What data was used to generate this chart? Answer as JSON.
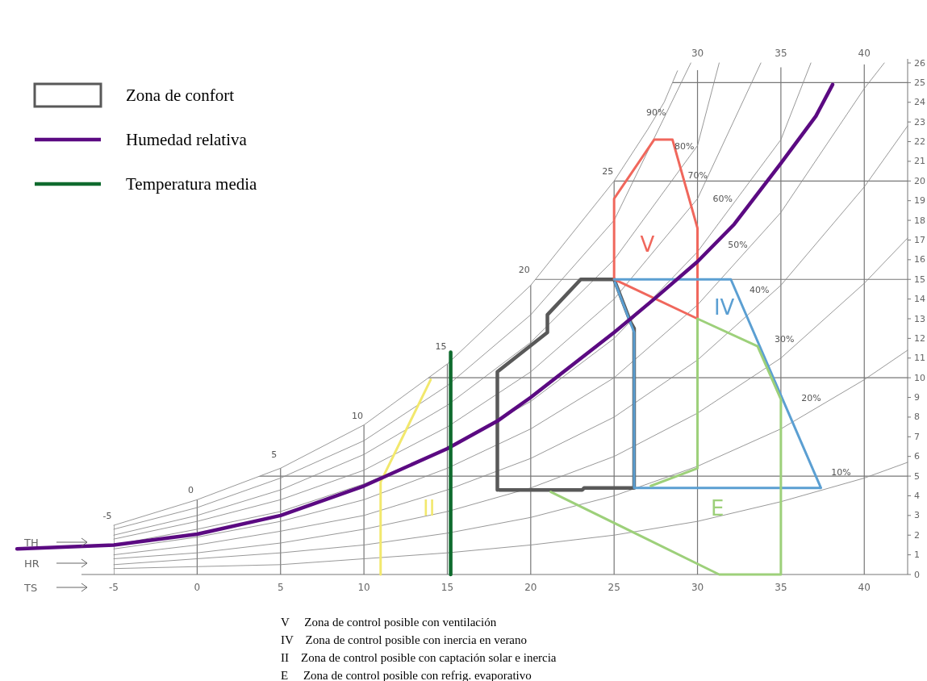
{
  "chart_data": {
    "type": "line",
    "xlim": [
      -11,
      42.6
    ],
    "ylim": [
      0,
      26
    ],
    "xticks": [
      -5,
      0,
      5,
      10,
      15,
      20,
      25,
      30,
      35,
      40
    ],
    "x2lim": [
      -11,
      42.6
    ],
    "x2ticks": [
      30,
      35,
      40
    ],
    "yticks": [
      0,
      1,
      2,
      3,
      4,
      5,
      6,
      7,
      8,
      9,
      10,
      11,
      12,
      13,
      14,
      15,
      16,
      17,
      18,
      19,
      20,
      21,
      22,
      23,
      24,
      25,
      26
    ],
    "grid": true,
    "legend": "top left",
    "series": [
      {
        "color": "#8c8c8c",
        "x": [
          -5,
          0,
          5,
          10,
          15,
          20,
          25,
          27,
          28,
          28.8
        ],
        "values": [
          2.5,
          3.8,
          5.4,
          7.6,
          10.7,
          14.7,
          20.0,
          22.6,
          24.0,
          25.6
        ]
      },
      {
        "color": "#8c8c8c",
        "x": [
          -5,
          0,
          5,
          10,
          15,
          20,
          25,
          30,
          35,
          40,
          42.6
        ],
        "values": [
          0.3,
          0.4,
          0.5,
          0.8,
          1.1,
          1.5,
          2.0,
          2.7,
          3.7,
          4.9,
          5.7
        ]
      },
      {
        "color": "#8c8c8c",
        "x": [
          -5,
          0,
          5,
          10,
          15,
          20,
          25,
          30,
          35,
          40,
          42.6
        ],
        "values": [
          0.5,
          0.8,
          1.1,
          1.5,
          2.1,
          2.9,
          4.0,
          5.5,
          7.4,
          9.9,
          11.4
        ]
      },
      {
        "color": "#8c8c8c",
        "x": [
          -5,
          0,
          5,
          10,
          15,
          20,
          25,
          30,
          35,
          40,
          42.6
        ],
        "values": [
          0.8,
          1.1,
          1.6,
          2.3,
          3.2,
          4.4,
          6.0,
          8.2,
          11.0,
          14.8,
          17.1
        ]
      },
      {
        "color": "#8c8c8c",
        "x": [
          -5,
          0,
          5,
          10,
          15,
          20,
          25,
          30,
          35,
          40,
          42.6
        ],
        "values": [
          1.0,
          1.5,
          2.2,
          3.0,
          4.3,
          5.9,
          8.0,
          10.9,
          14.7,
          19.7,
          22.8
        ]
      },
      {
        "color": "#8c8c8c",
        "x": [
          -5,
          0,
          5,
          10,
          15,
          20,
          25,
          30,
          35,
          40,
          41.2
        ],
        "values": [
          1.3,
          1.9,
          2.7,
          3.8,
          5.4,
          7.4,
          10.0,
          13.7,
          18.4,
          24.7,
          26.0
        ]
      },
      {
        "color": "#8c8c8c",
        "x": [
          -5,
          0,
          5,
          10,
          15,
          20,
          25,
          30,
          35,
          36.8
        ],
        "values": [
          1.5,
          2.3,
          3.2,
          4.6,
          6.4,
          8.8,
          12.0,
          16.4,
          22.1,
          26.0
        ]
      },
      {
        "color": "#8c8c8c",
        "x": [
          -5,
          0,
          5,
          10,
          15,
          20,
          25,
          30,
          33.8
        ],
        "values": [
          1.8,
          2.7,
          3.8,
          5.3,
          7.5,
          10.3,
          14.0,
          19.1,
          26.0
        ]
      },
      {
        "color": "#8c8c8c",
        "x": [
          -5,
          0,
          5,
          10,
          15,
          20,
          25,
          30,
          31.3
        ],
        "values": [
          2.0,
          3.0,
          4.3,
          6.1,
          8.6,
          11.8,
          16.0,
          21.8,
          26.0
        ]
      },
      {
        "color": "#8c8c8c",
        "x": [
          -5,
          0,
          5,
          10,
          15,
          20,
          25,
          29.6
        ],
        "values": [
          2.3,
          3.4,
          4.9,
          6.8,
          9.6,
          13.2,
          18.0,
          26.0
        ]
      },
      {
        "name": "Zona de confort",
        "color": "#595959",
        "x": [
          18,
          18,
          21,
          21,
          23,
          25,
          26,
          26.2,
          26.2,
          23.2,
          23.1,
          18.1
        ],
        "values": [
          4.3,
          10.3,
          12.3,
          13.2,
          15,
          15,
          12.8,
          12.5,
          4.4,
          4.4,
          4.3,
          4.3
        ]
      },
      {
        "color": "#f0675c",
        "x": [
          25,
          25,
          27.4,
          28.5,
          30,
          30,
          25.1
        ],
        "values": [
          15,
          19.1,
          22.1,
          22.1,
          17.6,
          13,
          14.96
        ]
      },
      {
        "color": "#5b9fd2",
        "x": [
          25,
          32,
          37.4,
          26.2,
          26.2,
          25.05
        ],
        "values": [
          15,
          15,
          4.4,
          4.4,
          12.3,
          14.85
        ]
      },
      {
        "color": "#9dd07a",
        "x": [
          21.2,
          31.3,
          35,
          35,
          33.6,
          30,
          30,
          27.2
        ],
        "values": [
          4.2,
          0,
          0,
          8.9,
          11.6,
          13,
          5.4,
          4.5
        ]
      },
      {
        "color": "#f2e86d",
        "x": [
          11,
          11,
          14
        ],
        "values": [
          0,
          4.7,
          9.9
        ]
      },
      {
        "name": "Humedad relativa",
        "color": "#5b0a82",
        "x": [
          -10.8,
          -5,
          0,
          5,
          10,
          15,
          18,
          20,
          25,
          27.4,
          30,
          32.2,
          35,
          37.1,
          38.1
        ],
        "values": [
          1.3,
          1.5,
          2.05,
          3.0,
          4.5,
          6.4,
          7.8,
          9.0,
          12.3,
          14.0,
          15.9,
          17.8,
          20.9,
          23.3,
          24.9
        ]
      },
      {
        "name": "Temperatura media",
        "color": "#0f6b2e",
        "x": [
          15.2,
          15.2
        ],
        "values": [
          0,
          11.3
        ]
      }
    ],
    "annotations": [
      "V",
      "IV",
      "II",
      "E",
      "TH",
      "HR",
      "TS",
      {
        "text": "90%",
        "x": 27.9,
        "y": 23.0
      },
      {
        "text": "80%",
        "x": 29.6,
        "y": 21.3
      },
      {
        "text": "70%",
        "x": 30.4,
        "y": 19.8
      },
      {
        "text": "60%",
        "x": 31.9,
        "y": 18.6
      },
      {
        "text": "50%",
        "x": 32.8,
        "y": 16.3
      },
      {
        "text": "40%",
        "x": 34.1,
        "y": 14.0
      },
      {
        "text": "30%",
        "x": 35.6,
        "y": 11.5
      },
      {
        "text": "20%",
        "x": 37.2,
        "y": 8.5
      },
      {
        "text": "10%",
        "x": 39.0,
        "y": 4.7
      },
      {
        "text": "-5",
        "x": -5,
        "y": 2.5
      },
      {
        "text": "0",
        "x": 0,
        "y": 3.8
      },
      {
        "text": "5",
        "x": 5,
        "y": 5.6
      },
      {
        "text": "10",
        "x": 10,
        "y": 7.6
      },
      {
        "text": "15",
        "x": 15,
        "y": 11.1
      },
      {
        "text": "20",
        "x": 20,
        "y": 15.0
      },
      {
        "text": "25",
        "x": 25,
        "y": 20.0
      },
      "V     Zona de control posible con ventilación",
      "IV    Zona de control posible con inercia en verano",
      "II    Zona de control posible con captación solar e inercia",
      "E     Zona de control posible con refrig. evaporativo"
    ]
  }
}
